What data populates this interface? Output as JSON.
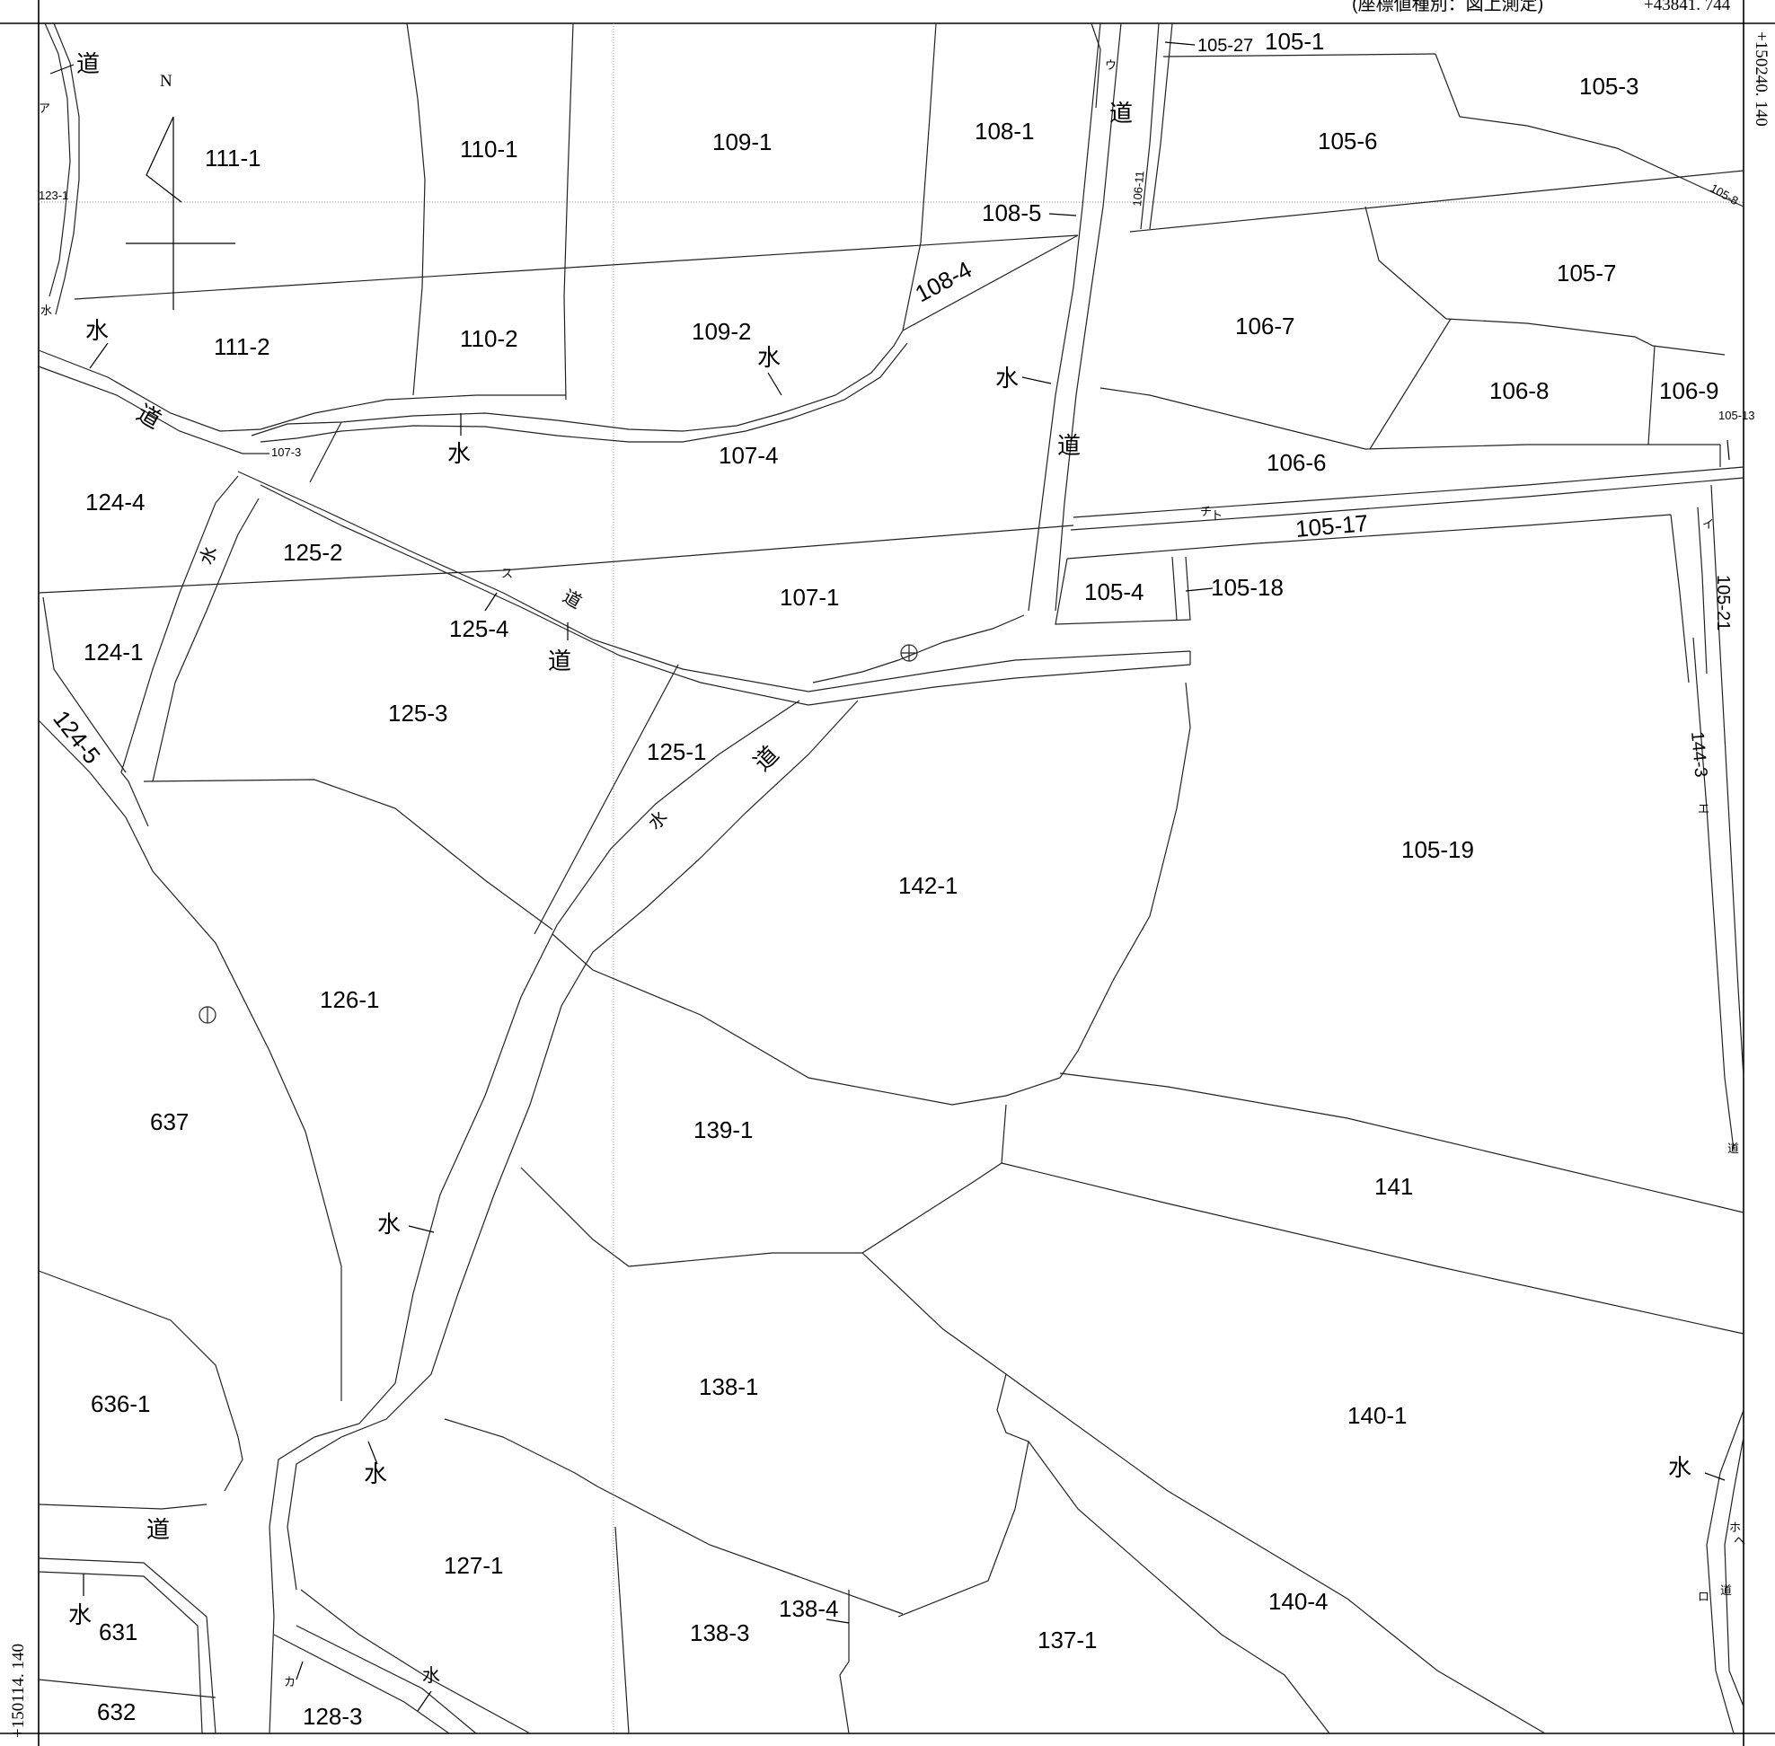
{
  "map": {
    "header_note": "(座標値種別：図上測定)",
    "header_coord": "+43841. 744",
    "coord_right": "+150240. 140",
    "coord_left": "+150114. 140",
    "north_label": "N"
  },
  "parcels": [
    "111-1",
    "110-1",
    "109-1",
    "108-1",
    "105-27",
    "105-1",
    "105-3",
    "105-6",
    "105-8",
    "108-5",
    "106-11",
    "123-1",
    "111-2",
    "110-2",
    "109-2",
    "108-4",
    "105-7",
    "106-7",
    "106-8",
    "106-9",
    "105-13",
    "107-3",
    "107-4",
    "106-6",
    "124-4",
    "125-2",
    "105-17",
    "105-4",
    "105-18",
    "107-1",
    "105-21",
    "124-1",
    "125-4",
    "125-3",
    "124-5",
    "125-1",
    "144-3",
    "142-1",
    "105-19",
    "126-1",
    "637",
    "139-1",
    "141",
    "636-1",
    "138-1",
    "140-1",
    "127-1",
    "138-4",
    "138-3",
    "140-4",
    "137-1",
    "631",
    "632",
    "128-3"
  ],
  "symbols": {
    "road": "道",
    "water": "水"
  },
  "letters": [
    "ア",
    "イ",
    "ウ",
    "エ",
    "カ",
    "ス",
    "チ",
    "ト",
    "ホ",
    "ロ",
    "ヘ"
  ]
}
